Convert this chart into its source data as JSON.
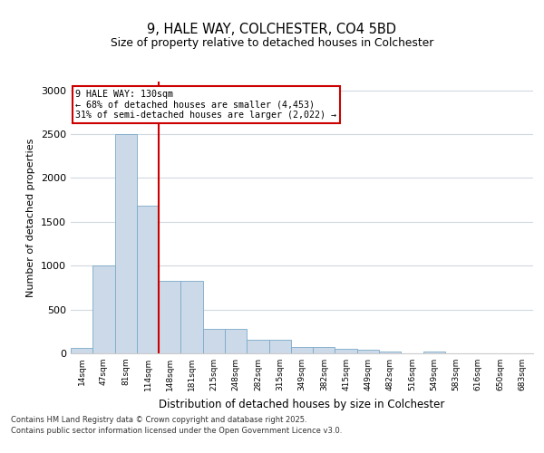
{
  "title1": "9, HALE WAY, COLCHESTER, CO4 5BD",
  "title2": "Size of property relative to detached houses in Colchester",
  "xlabel": "Distribution of detached houses by size in Colchester",
  "ylabel": "Number of detached properties",
  "bin_labels": [
    "14sqm",
    "47sqm",
    "81sqm",
    "114sqm",
    "148sqm",
    "181sqm",
    "215sqm",
    "248sqm",
    "282sqm",
    "315sqm",
    "349sqm",
    "382sqm",
    "415sqm",
    "449sqm",
    "482sqm",
    "516sqm",
    "549sqm",
    "583sqm",
    "616sqm",
    "650sqm",
    "683sqm"
  ],
  "bar_values": [
    60,
    1000,
    2500,
    1680,
    830,
    830,
    280,
    280,
    160,
    160,
    70,
    70,
    55,
    40,
    25,
    0,
    20,
    0,
    0,
    0,
    0
  ],
  "bar_color": "#ccd9e8",
  "bar_edge_color": "#7aaac8",
  "vline_x": 3.5,
  "vline_color": "#cc0000",
  "annotation_line1": "9 HALE WAY: 130sqm",
  "annotation_line2": "← 68% of detached houses are smaller (4,453)",
  "annotation_line3": "31% of semi-detached houses are larger (2,022) →",
  "annotation_box_color": "#ffffff",
  "annotation_box_edge_color": "#cc0000",
  "ylim": [
    0,
    3100
  ],
  "yticks": [
    0,
    500,
    1000,
    1500,
    2000,
    2500,
    3000
  ],
  "footer_line1": "Contains HM Land Registry data © Crown copyright and database right 2025.",
  "footer_line2": "Contains public sector information licensed under the Open Government Licence v3.0.",
  "bg_color": "#ffffff",
  "plot_bg_color": "#ffffff"
}
